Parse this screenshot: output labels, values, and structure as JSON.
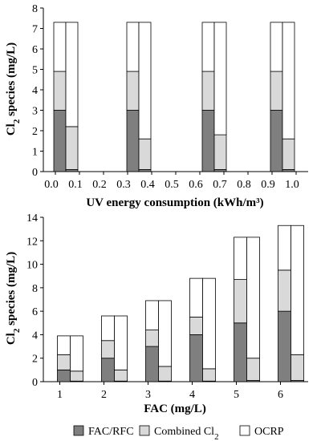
{
  "colors": {
    "fac": "#7f7f7f",
    "combined": "#d9d9d9",
    "ocrp": "#ffffff",
    "edge": "#000000"
  },
  "legend": {
    "fac_label": "FAC/RFC",
    "combined_label_main": "Combined Cl",
    "combined_label_sub": "2",
    "ocrp_label": "OCRP"
  },
  "chart_data": [
    {
      "type": "bar",
      "stacked": true,
      "title": "",
      "xlabel": "UV energy consumption (kWh/m³)",
      "ylabel_main": "Cl",
      "ylabel_sub": "2",
      "ylabel_rest": " species (mg/L)",
      "xlim": [
        -0.05,
        1.05
      ],
      "ylim": [
        0,
        8
      ],
      "yticks": [
        0,
        1,
        2,
        3,
        4,
        5,
        6,
        7,
        8
      ],
      "xticks": [
        "0.0",
        "0.1",
        "0.2",
        "0.3",
        "0.4",
        "0.5",
        "0.6",
        "0.7",
        "0.8",
        "0.9",
        "1.0"
      ],
      "xtick_values": [
        0,
        0.1,
        0.2,
        0.3,
        0.4,
        0.5,
        0.6,
        0.7,
        0.8,
        0.9,
        1.0
      ],
      "groups": [
        {
          "x": 0.0,
          "bars": [
            {
              "fac": 3.0,
              "combined": 1.9,
              "ocrp": 2.4
            },
            {
              "fac": 0.1,
              "combined": 2.1,
              "ocrp": 5.1
            }
          ]
        },
        {
          "x": 0.35,
          "bars": [
            {
              "fac": 3.0,
              "combined": 1.9,
              "ocrp": 2.4
            },
            {
              "fac": 0.1,
              "combined": 1.5,
              "ocrp": 5.7
            }
          ]
        },
        {
          "x": 0.65,
          "bars": [
            {
              "fac": 3.0,
              "combined": 1.9,
              "ocrp": 2.4
            },
            {
              "fac": 0.1,
              "combined": 1.7,
              "ocrp": 5.5
            }
          ]
        },
        {
          "x": 0.95,
          "bars": [
            {
              "fac": 3.0,
              "combined": 1.9,
              "ocrp": 2.4
            },
            {
              "fac": 0.1,
              "combined": 1.5,
              "ocrp": 5.7
            }
          ]
        }
      ]
    },
    {
      "type": "bar",
      "stacked": true,
      "title": "",
      "xlabel": "FAC (mg/L)",
      "ylabel_main": "Cl",
      "ylabel_sub": "2",
      "ylabel_rest": " species (mg/L)",
      "ylim": [
        0,
        14
      ],
      "yticks": [
        0,
        2,
        4,
        6,
        8,
        10,
        12,
        14
      ],
      "categories": [
        "1",
        "2",
        "3",
        "4",
        "5",
        "6"
      ],
      "groups": [
        {
          "bars": [
            {
              "fac": 1.0,
              "combined": 1.3,
              "ocrp": 1.6
            },
            {
              "fac": 0.05,
              "combined": 0.85,
              "ocrp": 3.0
            }
          ]
        },
        {
          "bars": [
            {
              "fac": 2.0,
              "combined": 1.5,
              "ocrp": 2.1
            },
            {
              "fac": 0.05,
              "combined": 0.95,
              "ocrp": 4.6
            }
          ]
        },
        {
          "bars": [
            {
              "fac": 3.0,
              "combined": 1.4,
              "ocrp": 2.5
            },
            {
              "fac": 0.05,
              "combined": 1.25,
              "ocrp": 5.6
            }
          ]
        },
        {
          "bars": [
            {
              "fac": 4.0,
              "combined": 1.5,
              "ocrp": 3.3
            },
            {
              "fac": 0.05,
              "combined": 1.05,
              "ocrp": 7.7
            }
          ]
        },
        {
          "bars": [
            {
              "fac": 5.0,
              "combined": 3.7,
              "ocrp": 3.6
            },
            {
              "fac": 0.1,
              "combined": 1.9,
              "ocrp": 10.3
            }
          ]
        },
        {
          "bars": [
            {
              "fac": 6.0,
              "combined": 3.5,
              "ocrp": 3.8
            },
            {
              "fac": 0.1,
              "combined": 2.2,
              "ocrp": 11.0
            }
          ]
        }
      ]
    }
  ]
}
